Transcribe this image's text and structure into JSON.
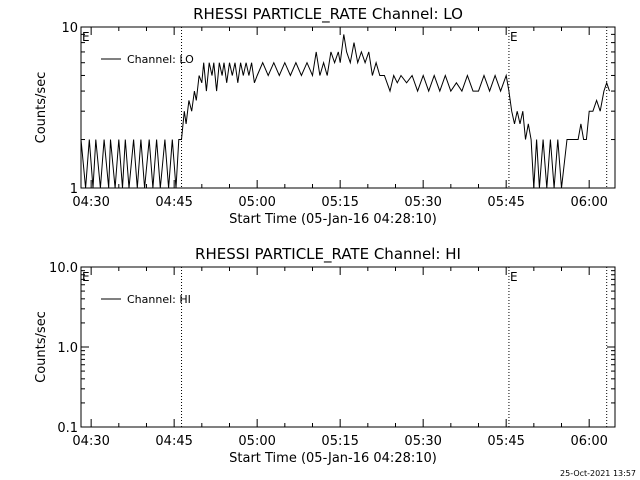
{
  "footer_timestamp": "25-Oct-2021 13:57",
  "chart_data": [
    {
      "type": "line",
      "title": "RHESSI PARTICLE_RATE Channel: LO",
      "xlabel": "Start Time (05-Jan-16 04:28:10)",
      "ylabel": "Counts/sec",
      "yscale": "log",
      "ylim": [
        1,
        10
      ],
      "xlim": [
        "04:28:10",
        "06:04:40"
      ],
      "x_ticks": [
        "04:30",
        "04:45",
        "05:00",
        "05:15",
        "05:30",
        "05:45",
        "06:00"
      ],
      "y_ticks": [
        "1",
        "10"
      ],
      "legend": {
        "label": "Channel: LO",
        "position": "top-left"
      },
      "event_markers": [
        {
          "time": "04:46:20",
          "label": ""
        },
        {
          "time": "05:45:30",
          "label": "E"
        },
        {
          "time": "06:03:10",
          "label": ""
        }
      ],
      "corner_label": "E",
      "series": [
        {
          "name": "Channel: LO",
          "points": [
            [
              "04:28:10",
              2
            ],
            [
              "04:29:00",
              1
            ],
            [
              "04:29:40",
              2
            ],
            [
              "04:30:20",
              1
            ],
            [
              "04:30:50",
              2
            ],
            [
              "04:31:40",
              1
            ],
            [
              "04:32:20",
              2
            ],
            [
              "04:33:10",
              1
            ],
            [
              "04:33:30",
              2
            ],
            [
              "04:34:20",
              1
            ],
            [
              "04:35:00",
              2
            ],
            [
              "04:35:40",
              1
            ],
            [
              "04:36:10",
              2
            ],
            [
              "04:36:50",
              1
            ],
            [
              "04:37:40",
              2
            ],
            [
              "04:38:20",
              1
            ],
            [
              "04:39:00",
              2
            ],
            [
              "04:39:40",
              1
            ],
            [
              "04:40:30",
              2
            ],
            [
              "04:41:10",
              1
            ],
            [
              "04:41:50",
              2
            ],
            [
              "04:42:30",
              1
            ],
            [
              "04:43:20",
              2
            ],
            [
              "04:44:00",
              1
            ],
            [
              "04:44:40",
              2
            ],
            [
              "04:45:20",
              1
            ],
            [
              "04:45:50",
              2
            ],
            [
              "04:46:20",
              2
            ],
            [
              "04:46:50",
              3
            ],
            [
              "04:47:10",
              2.5
            ],
            [
              "04:47:40",
              3.5
            ],
            [
              "04:48:10",
              3
            ],
            [
              "04:48:40",
              4
            ],
            [
              "04:49:00",
              3.5
            ],
            [
              "04:49:30",
              5
            ],
            [
              "04:50:00",
              4.5
            ],
            [
              "04:50:20",
              6
            ],
            [
              "04:50:50",
              4
            ],
            [
              "04:51:20",
              6
            ],
            [
              "04:51:50",
              5
            ],
            [
              "04:52:10",
              6
            ],
            [
              "04:52:40",
              4
            ],
            [
              "04:53:10",
              6
            ],
            [
              "04:53:40",
              5
            ],
            [
              "04:54:00",
              6
            ],
            [
              "04:54:30",
              4.5
            ],
            [
              "04:55:00",
              6
            ],
            [
              "04:55:30",
              5
            ],
            [
              "04:56:00",
              6
            ],
            [
              "04:56:30",
              4.5
            ],
            [
              "04:57:00",
              6
            ],
            [
              "04:57:30",
              5
            ],
            [
              "04:58:00",
              6
            ],
            [
              "04:58:30",
              5
            ],
            [
              "04:59:00",
              6
            ],
            [
              "04:59:30",
              4.5
            ],
            [
              "05:00:00",
              5
            ],
            [
              "05:01:00",
              6
            ],
            [
              "05:02:00",
              5
            ],
            [
              "05:03:00",
              6
            ],
            [
              "05:04:00",
              5
            ],
            [
              "05:05:00",
              6
            ],
            [
              "05:06:00",
              5
            ],
            [
              "05:07:00",
              6
            ],
            [
              "05:08:00",
              5
            ],
            [
              "05:09:00",
              6
            ],
            [
              "05:10:00",
              5
            ],
            [
              "05:10:40",
              7
            ],
            [
              "05:11:20",
              5
            ],
            [
              "05:12:00",
              6
            ],
            [
              "05:12:40",
              5
            ],
            [
              "05:13:20",
              7
            ],
            [
              "05:14:00",
              6
            ],
            [
              "05:14:40",
              7
            ],
            [
              "05:15:00",
              6
            ],
            [
              "05:15:40",
              9
            ],
            [
              "05:16:10",
              7
            ],
            [
              "05:16:50",
              6
            ],
            [
              "05:17:30",
              8
            ],
            [
              "05:18:10",
              6
            ],
            [
              "05:18:50",
              7
            ],
            [
              "05:19:30",
              6
            ],
            [
              "05:20:10",
              7
            ],
            [
              "05:20:50",
              5
            ],
            [
              "05:21:30",
              6
            ],
            [
              "05:22:10",
              5
            ],
            [
              "05:23:00",
              5
            ],
            [
              "05:24:00",
              4
            ],
            [
              "05:24:40",
              5
            ],
            [
              "05:25:20",
              4.5
            ],
            [
              "05:26:00",
              5
            ],
            [
              "05:27:00",
              4.5
            ],
            [
              "05:28:00",
              5
            ],
            [
              "05:29:00",
              4
            ],
            [
              "05:30:00",
              5
            ],
            [
              "05:31:00",
              4
            ],
            [
              "05:32:00",
              5
            ],
            [
              "05:33:00",
              4
            ],
            [
              "05:34:00",
              5
            ],
            [
              "05:35:00",
              4
            ],
            [
              "05:36:00",
              4.5
            ],
            [
              "05:37:00",
              4
            ],
            [
              "05:38:00",
              5
            ],
            [
              "05:39:00",
              4
            ],
            [
              "05:40:00",
              4
            ],
            [
              "05:41:00",
              5
            ],
            [
              "05:42:00",
              4
            ],
            [
              "05:43:00",
              5
            ],
            [
              "05:44:00",
              4
            ],
            [
              "05:45:00",
              5
            ],
            [
              "05:45:30",
              4
            ],
            [
              "05:46:00",
              3
            ],
            [
              "05:46:30",
              2.5
            ],
            [
              "05:47:00",
              3
            ],
            [
              "05:47:30",
              2.5
            ],
            [
              "05:48:00",
              3
            ],
            [
              "05:48:30",
              2
            ],
            [
              "05:49:00",
              2.5
            ],
            [
              "05:49:30",
              2
            ],
            [
              "05:50:00",
              1
            ],
            [
              "05:50:30",
              2
            ],
            [
              "05:51:00",
              1
            ],
            [
              "05:51:40",
              2
            ],
            [
              "05:52:20",
              1
            ],
            [
              "05:53:00",
              2
            ],
            [
              "05:53:40",
              1
            ],
            [
              "05:54:20",
              2
            ],
            [
              "05:55:00",
              1
            ],
            [
              "05:56:00",
              2
            ],
            [
              "05:57:00",
              2
            ],
            [
              "05:58:00",
              2
            ],
            [
              "05:58:30",
              2.5
            ],
            [
              "05:59:00",
              2
            ],
            [
              "05:59:30",
              2
            ],
            [
              "06:00:00",
              3
            ],
            [
              "06:00:40",
              3
            ],
            [
              "06:01:20",
              3.5
            ],
            [
              "06:02:00",
              3
            ],
            [
              "06:02:40",
              4
            ],
            [
              "06:03:10",
              4.5
            ],
            [
              "06:03:40",
              4
            ]
          ]
        }
      ]
    },
    {
      "type": "line",
      "title": "RHESSI PARTICLE_RATE Channel: HI",
      "xlabel": "Start Time (05-Jan-16 04:28:10)",
      "ylabel": "Counts/sec",
      "yscale": "log",
      "ylim": [
        0.1,
        10
      ],
      "xlim": [
        "04:28:10",
        "06:04:40"
      ],
      "x_ticks": [
        "04:30",
        "04:45",
        "05:00",
        "05:15",
        "05:30",
        "05:45",
        "06:00"
      ],
      "y_ticks": [
        "0.1",
        "1.0",
        "10.0"
      ],
      "legend": {
        "label": "Channel: HI",
        "position": "top-left"
      },
      "event_markers": [
        {
          "time": "04:46:20",
          "label": ""
        },
        {
          "time": "05:45:30",
          "label": "E"
        },
        {
          "time": "06:03:10",
          "label": ""
        }
      ],
      "corner_label": "E",
      "series": [
        {
          "name": "Channel: HI",
          "points": []
        }
      ]
    }
  ]
}
